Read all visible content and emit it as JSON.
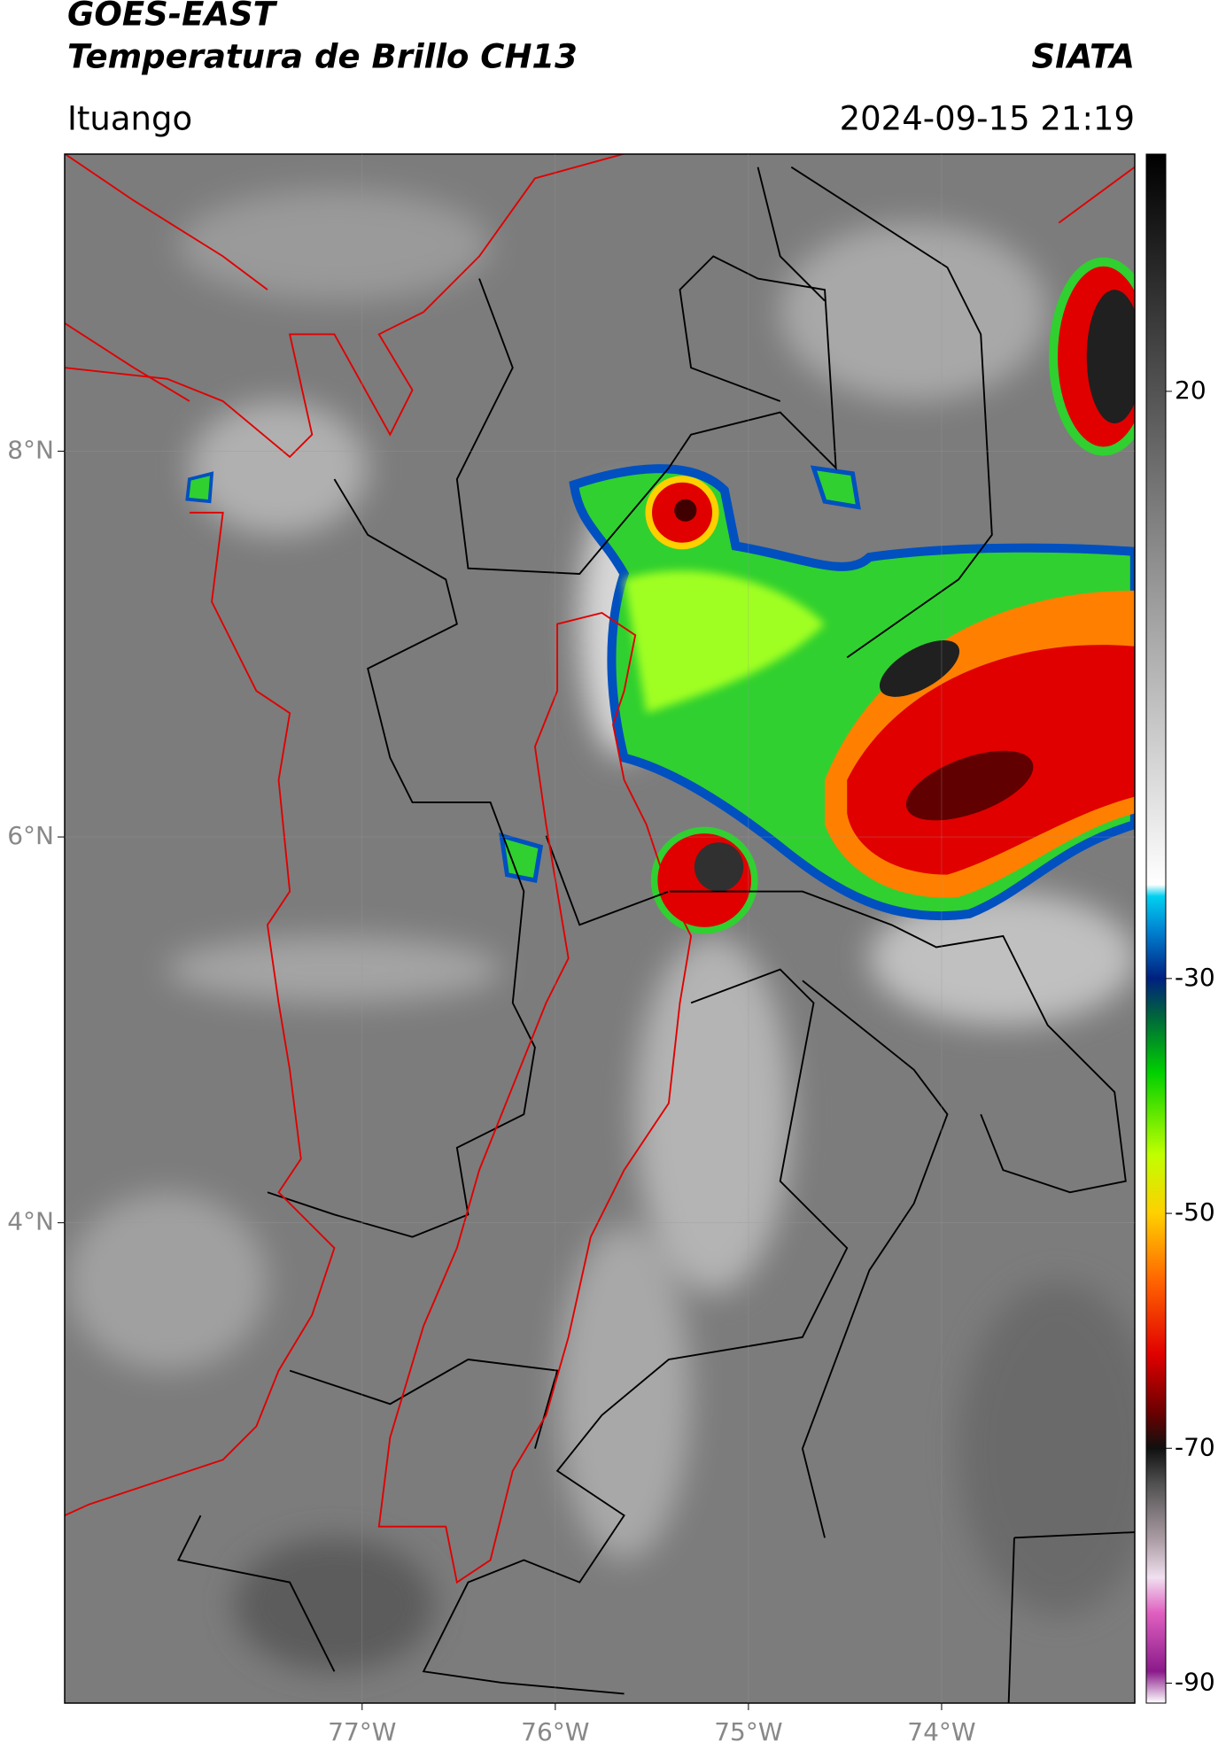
{
  "header": {
    "title": "GOES-EAST",
    "subtitle": "Temperatura de Brillo CH13",
    "source": "SIATA",
    "location": "Ituango",
    "datetime": "2024-09-15 21:19"
  },
  "map": {
    "lonlim": [
      -78.54,
      -73.0
    ],
    "latlim": [
      1.51,
      9.54
    ],
    "lon_ticks": [
      {
        "value": -77,
        "label": "77°W"
      },
      {
        "value": -76,
        "label": "76°W"
      },
      {
        "value": -75,
        "label": "75°W"
      },
      {
        "value": -74,
        "label": "74°W"
      }
    ],
    "lat_ticks": [
      {
        "value": 8,
        "label": "8°N"
      },
      {
        "value": 6,
        "label": "6°N"
      },
      {
        "value": 4,
        "label": "4°N"
      }
    ]
  },
  "colorbar": {
    "lim": [
      -91.7,
      40.2
    ],
    "ticks": [
      20,
      -30,
      -50,
      -70,
      -90
    ],
    "colormap": [
      {
        "value": -91.7,
        "color": "#ffffff"
      },
      {
        "value": -89,
        "color": "#8a1a8a"
      },
      {
        "value": -84,
        "color": "#e060c0"
      },
      {
        "value": -81,
        "color": "#f0e0f0"
      },
      {
        "value": -78,
        "color": "#b0a0a8"
      },
      {
        "value": -73,
        "color": "#505050"
      },
      {
        "value": -70,
        "color": "#101010"
      },
      {
        "value": -67,
        "color": "#6a0000"
      },
      {
        "value": -62,
        "color": "#e00000"
      },
      {
        "value": -56,
        "color": "#ff6000"
      },
      {
        "value": -50,
        "color": "#ffd000"
      },
      {
        "value": -45,
        "color": "#c0ff00"
      },
      {
        "value": -38,
        "color": "#00d000"
      },
      {
        "value": -33,
        "color": "#006040"
      },
      {
        "value": -30,
        "color": "#002080"
      },
      {
        "value": -26,
        "color": "#0080d0"
      },
      {
        "value": -23,
        "color": "#00d0f0"
      },
      {
        "value": -22,
        "color": "#ffffff"
      },
      {
        "value": 40.2,
        "color": "#000000"
      }
    ]
  }
}
